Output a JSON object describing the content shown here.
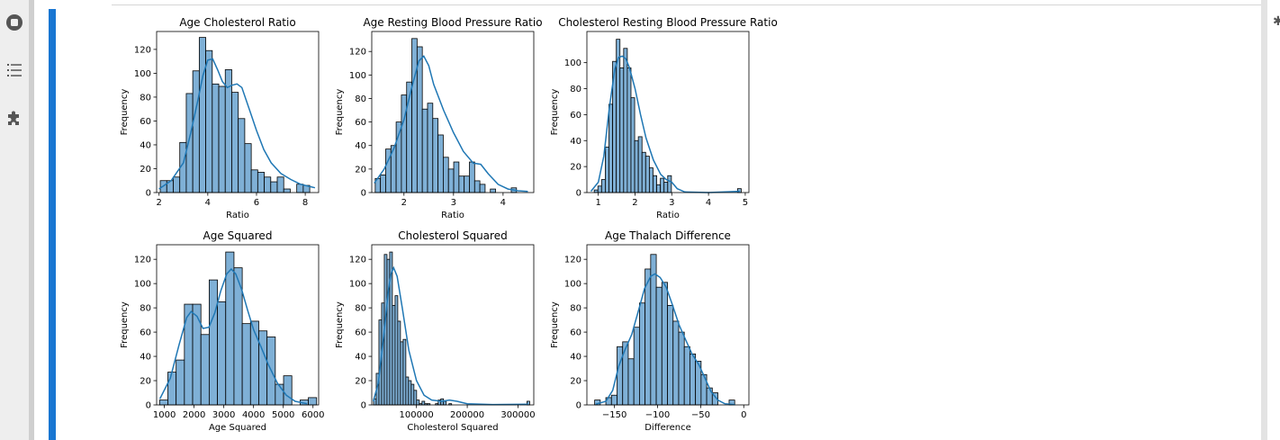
{
  "sidebar": {
    "icons": [
      "stop-circle-icon",
      "list-icon",
      "puzzle-icon"
    ]
  },
  "right_icon": "gear-icon",
  "colors": {
    "accent": "#1976d2",
    "bar_fill": "#7fb0d6",
    "kde_line": "#1f77b4",
    "bar_edge": "#000000"
  },
  "chart_data": [
    {
      "type": "bar",
      "title": "Age Cholesterol Ratio",
      "xlabel": "Ratio",
      "ylabel": "Frequency",
      "xlim": [
        1.9,
        8.55
      ],
      "ylim": [
        0,
        135
      ],
      "xticks": [
        2,
        4,
        6,
        8
      ],
      "yticks": [
        0,
        20,
        40,
        60,
        80,
        100,
        120
      ],
      "bins": {
        "start": 2.05,
        "width": 0.2667
      },
      "values": [
        10,
        10,
        13,
        42,
        83,
        102,
        130,
        119,
        91,
        89,
        103,
        84,
        62,
        41,
        19,
        17,
        13,
        9,
        13,
        3,
        0,
        7,
        6
      ],
      "kde": [
        [
          2.0,
          3
        ],
        [
          2.5,
          10
        ],
        [
          3.0,
          25
        ],
        [
          3.3,
          50
        ],
        [
          3.6,
          78
        ],
        [
          3.8,
          98
        ],
        [
          4.0,
          111
        ],
        [
          4.2,
          112
        ],
        [
          4.4,
          103
        ],
        [
          4.6,
          93
        ],
        [
          4.8,
          88
        ],
        [
          5.0,
          90
        ],
        [
          5.2,
          91
        ],
        [
          5.4,
          88
        ],
        [
          5.7,
          70
        ],
        [
          6.0,
          52
        ],
        [
          6.3,
          36
        ],
        [
          6.6,
          25
        ],
        [
          7.0,
          16
        ],
        [
          7.4,
          11
        ],
        [
          7.8,
          7
        ],
        [
          8.2,
          5
        ],
        [
          8.4,
          4
        ]
      ]
    },
    {
      "type": "bar",
      "title": "Age Resting Blood Pressure Ratio",
      "xlabel": "Ratio",
      "ylabel": "Frequency",
      "xlim": [
        1.35,
        4.62
      ],
      "ylim": [
        0,
        137
      ],
      "xticks": [
        2,
        3,
        4
      ],
      "yticks": [
        0,
        20,
        40,
        60,
        80,
        100,
        120
      ],
      "bins": {
        "start": 1.42,
        "width": 0.1056
      },
      "values": [
        12,
        15,
        37,
        40,
        60,
        83,
        94,
        131,
        124,
        71,
        76,
        63,
        49,
        30,
        20,
        26,
        14,
        14,
        26,
        10,
        7,
        0,
        3,
        0,
        0,
        0,
        4
      ],
      "kde": [
        [
          1.4,
          8
        ],
        [
          1.6,
          20
        ],
        [
          1.8,
          38
        ],
        [
          2.0,
          62
        ],
        [
          2.15,
          88
        ],
        [
          2.3,
          112
        ],
        [
          2.4,
          116
        ],
        [
          2.5,
          108
        ],
        [
          2.6,
          92
        ],
        [
          2.8,
          70
        ],
        [
          3.0,
          51
        ],
        [
          3.2,
          35
        ],
        [
          3.4,
          25
        ],
        [
          3.55,
          24
        ],
        [
          3.7,
          16
        ],
        [
          3.9,
          7
        ],
        [
          4.1,
          3
        ],
        [
          4.3,
          1.5
        ],
        [
          4.5,
          1
        ]
      ]
    },
    {
      "type": "bar",
      "title": "Cholesterol Resting Blood Pressure Ratio",
      "xlabel": "Ratio",
      "ylabel": "Frequency",
      "xlim": [
        0.69,
        5.1
      ],
      "ylim": [
        0,
        124
      ],
      "xticks": [
        1,
        2,
        3,
        4,
        5
      ],
      "yticks": [
        0,
        20,
        40,
        60,
        80,
        100
      ],
      "bins": {
        "start": 0.89,
        "width": 0.1
      },
      "values": [
        2,
        5,
        10,
        35,
        68,
        101,
        118,
        96,
        111,
        96,
        73,
        40,
        43,
        31,
        28,
        19,
        13,
        6,
        11,
        8,
        13,
        0,
        0,
        0,
        0,
        0,
        0,
        0,
        0,
        0,
        0,
        0,
        0,
        0,
        0,
        0,
        0,
        0,
        0,
        3
      ],
      "kde": [
        [
          0.8,
          1
        ],
        [
          1.0,
          8
        ],
        [
          1.15,
          28
        ],
        [
          1.3,
          65
        ],
        [
          1.45,
          95
        ],
        [
          1.55,
          104
        ],
        [
          1.65,
          105
        ],
        [
          1.75,
          103
        ],
        [
          1.85,
          96
        ],
        [
          2.0,
          80
        ],
        [
          2.15,
          60
        ],
        [
          2.3,
          42
        ],
        [
          2.5,
          25
        ],
        [
          2.7,
          14
        ],
        [
          2.85,
          10
        ],
        [
          3.0,
          8
        ],
        [
          3.15,
          3
        ],
        [
          3.35,
          0.5
        ],
        [
          4.0,
          0
        ],
        [
          4.85,
          1
        ]
      ]
    },
    {
      "type": "bar",
      "title": "Age Squared",
      "xlabel": "Age Squared",
      "ylabel": "Frequency",
      "xlim": [
        740,
        6190
      ],
      "ylim": [
        0,
        132
      ],
      "xticks": [
        1000,
        2000,
        3000,
        4000,
        5000,
        6000
      ],
      "yticks": [
        0,
        20,
        40,
        60,
        80,
        100,
        120
      ],
      "bins": {
        "start": 840,
        "width": 278
      },
      "values": [
        4,
        27,
        37,
        83,
        83,
        58,
        103,
        85,
        126,
        113,
        67,
        69,
        61,
        56,
        17,
        24,
        0,
        4,
        6
      ],
      "kde": [
        [
          850,
          5
        ],
        [
          1200,
          22
        ],
        [
          1500,
          50
        ],
        [
          1750,
          72
        ],
        [
          1900,
          77
        ],
        [
          2100,
          73
        ],
        [
          2300,
          63
        ],
        [
          2500,
          64
        ],
        [
          2700,
          76
        ],
        [
          2900,
          94
        ],
        [
          3100,
          108
        ],
        [
          3250,
          112
        ],
        [
          3400,
          108
        ],
        [
          3600,
          95
        ],
        [
          3800,
          78
        ],
        [
          4000,
          62
        ],
        [
          4250,
          48
        ],
        [
          4500,
          33
        ],
        [
          4800,
          18
        ],
        [
          5100,
          8
        ],
        [
          5400,
          3
        ],
        [
          5800,
          1
        ]
      ]
    },
    {
      "type": "bar",
      "title": "Cholesterol Squared",
      "xlabel": "Cholesterol Squared",
      "ylabel": "Frequency",
      "xlim": [
        12000,
        331000
      ],
      "ylim": [
        0,
        132
      ],
      "xticks": [
        100000,
        200000,
        300000
      ],
      "yticks": [
        0,
        20,
        40,
        60,
        80,
        100,
        120
      ],
      "bins": {
        "start": 15500,
        "width": 5300
      },
      "values": [
        5,
        26,
        70,
        84,
        124,
        120,
        126,
        82,
        90,
        69,
        52,
        54,
        23,
        20,
        17,
        12,
        4,
        1,
        3,
        1,
        1,
        0,
        0,
        1,
        4,
        5,
        3,
        0,
        1,
        0,
        0,
        0,
        0,
        0,
        0,
        0,
        0,
        0,
        0,
        0,
        0,
        0,
        0,
        0,
        0,
        0,
        0,
        0,
        0,
        0,
        0,
        0,
        0,
        0,
        0,
        0,
        0,
        3
      ],
      "kde": [
        [
          15000,
          3
        ],
        [
          25000,
          18
        ],
        [
          35000,
          55
        ],
        [
          45000,
          95
        ],
        [
          50000,
          108
        ],
        [
          55000,
          113
        ],
        [
          62000,
          106
        ],
        [
          72000,
          80
        ],
        [
          85000,
          45
        ],
        [
          100000,
          20
        ],
        [
          115000,
          8
        ],
        [
          130000,
          4
        ],
        [
          150000,
          3
        ],
        [
          165000,
          4
        ],
        [
          180000,
          3
        ],
        [
          200000,
          1
        ],
        [
          250000,
          0.3
        ],
        [
          320000,
          0.5
        ]
      ]
    },
    {
      "type": "bar",
      "title": "Age Thalach Difference",
      "xlabel": "Difference",
      "ylabel": "Frequency",
      "xlim": [
        -182,
        6
      ],
      "ylim": [
        0,
        132
      ],
      "xticks": [
        -150,
        -100,
        -50,
        0
      ],
      "yticks": [
        0,
        20,
        40,
        60,
        80,
        100,
        120
      ],
      "bins": {
        "start": -173,
        "width": 6.5
      },
      "values": [
        4,
        0,
        6,
        8,
        48,
        52,
        38,
        64,
        84,
        112,
        124,
        97,
        101,
        82,
        69,
        60,
        48,
        42,
        36,
        25,
        14,
        10,
        0,
        0,
        4
      ],
      "kde": [
        [
          -172,
          0.5
        ],
        [
          -160,
          3
        ],
        [
          -152,
          12
        ],
        [
          -145,
          32
        ],
        [
          -138,
          45
        ],
        [
          -130,
          58
        ],
        [
          -122,
          78
        ],
        [
          -115,
          96
        ],
        [
          -108,
          106
        ],
        [
          -103,
          108
        ],
        [
          -97,
          105
        ],
        [
          -90,
          97
        ],
        [
          -83,
          83
        ],
        [
          -75,
          66
        ],
        [
          -67,
          53
        ],
        [
          -60,
          42
        ],
        [
          -52,
          33
        ],
        [
          -45,
          22
        ],
        [
          -38,
          11
        ],
        [
          -30,
          4
        ],
        [
          -22,
          1
        ],
        [
          -10,
          0.2
        ]
      ]
    }
  ]
}
